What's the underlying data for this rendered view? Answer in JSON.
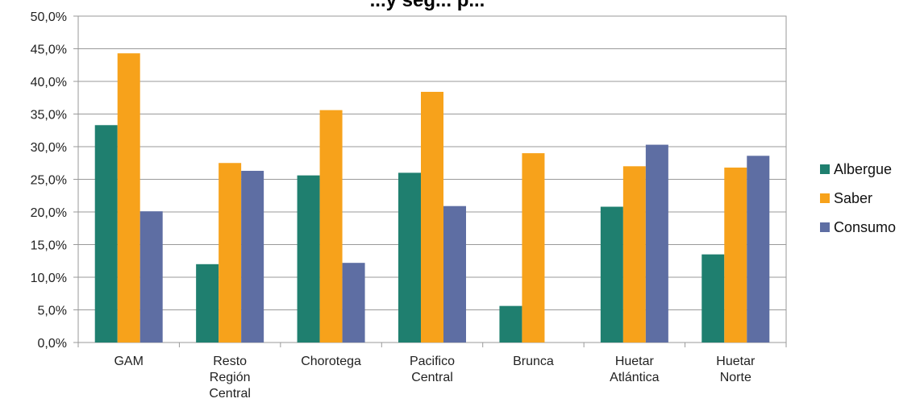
{
  "chart_data": {
    "type": "bar",
    "title": "...y seg... p...",
    "categories": [
      [
        "GAM"
      ],
      [
        "Resto",
        "Región",
        "Central"
      ],
      [
        "Chorotega"
      ],
      [
        "Pacifico",
        "Central"
      ],
      [
        "Brunca"
      ],
      [
        "Huetar",
        "Atlántica"
      ],
      [
        "Huetar",
        "Norte"
      ]
    ],
    "series": [
      {
        "name": "Albergue",
        "color": "#1f7f6f",
        "values": [
          33.3,
          12.0,
          25.6,
          26.0,
          5.6,
          20.8,
          13.5
        ]
      },
      {
        "name": "Saber",
        "color": "#f7a21b",
        "values": [
          44.3,
          27.5,
          35.6,
          38.4,
          29.0,
          27.0,
          26.8
        ]
      },
      {
        "name": "Consumo",
        "color": "#5e6ea3",
        "values": [
          20.1,
          26.3,
          12.2,
          20.9,
          0.0,
          30.3,
          28.6
        ]
      }
    ],
    "ylim": [
      0,
      50
    ],
    "yticks": [
      "0,0%",
      "5,0%",
      "10,0%",
      "15,0%",
      "20,0%",
      "25,0%",
      "30,0%",
      "35,0%",
      "40,0%",
      "45,0%",
      "50,0%"
    ],
    "grid": true,
    "legend": "right"
  }
}
